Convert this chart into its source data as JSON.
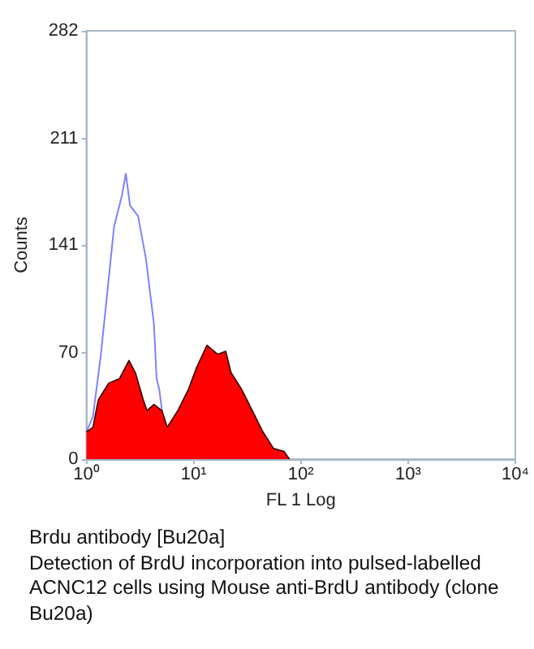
{
  "chart_data": {
    "type": "area",
    "title": "Brdu antibody [Bu20a]",
    "annotations": [
      "Detection of BrdU incorporation into pulsed-labelled ACNC12 cells using Mouse anti-BrdU antibody (clone Bu20a)"
    ],
    "xlabel": "FL 1 Log",
    "ylabel": "Counts",
    "log": "x",
    "marker": "none",
    "grid": false,
    "xlim": [
      1,
      10000
    ],
    "xticks": [
      {
        "value": 1,
        "label": "10⁰"
      },
      {
        "value": 10,
        "label": "10¹"
      },
      {
        "value": 100,
        "label": "10²"
      },
      {
        "value": 1000,
        "label": "10³"
      },
      {
        "value": 10000,
        "label": "10⁴"
      }
    ],
    "ylim": [
      0,
      282
    ],
    "yticks": [
      0,
      70,
      141,
      211,
      282
    ],
    "series": [
      {
        "type": "line",
        "color": "#8080ff",
        "x": [
          1,
          1.15,
          1.36,
          1.53,
          1.81,
          2.15,
          2.33,
          2.55,
          3.03,
          3.59,
          4.26,
          4.51,
          4.78,
          5.06
        ],
        "values": [
          18,
          28,
          68,
          103,
          153,
          174,
          188,
          167,
          160,
          132,
          89,
          53,
          46,
          32
        ]
      },
      {
        "type": "area",
        "color": "#ff0000",
        "x": [
          1,
          1.15,
          1.29,
          1.61,
          2.03,
          2.49,
          2.86,
          3.39,
          3.67,
          4.26,
          5.06,
          5.67,
          7.12,
          8.95,
          10.6,
          13.3,
          16.8,
          19.9,
          22.3,
          28.0,
          35.2,
          44.2,
          55.6,
          69.8,
          78.2
        ],
        "values": [
          18,
          21,
          39,
          50,
          53,
          65,
          57,
          39,
          32,
          36,
          32,
          21,
          32,
          46,
          60,
          75,
          69,
          71,
          57,
          46,
          32,
          18,
          7,
          5,
          0
        ]
      }
    ]
  }
}
